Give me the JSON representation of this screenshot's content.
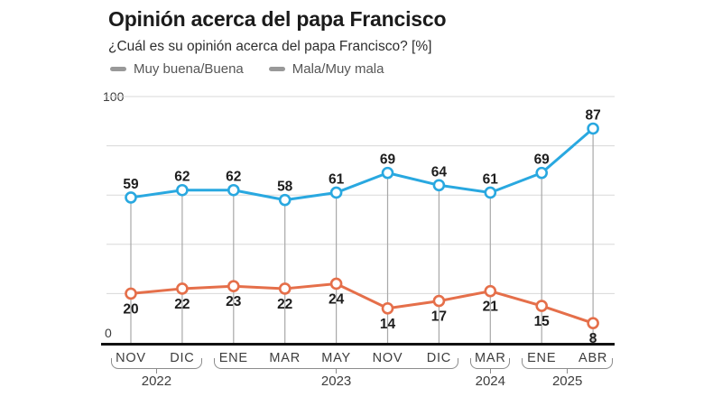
{
  "header": {
    "title": "Opinión acerca del papa Francisco",
    "subtitle": "¿Cuál es su opinión acerca del papa Francisco? [%]"
  },
  "legend": [
    {
      "label": "Muy buena/Buena",
      "color": "#29a8e0"
    },
    {
      "label": "Mala/Muy mala",
      "color": "#e56f4a"
    }
  ],
  "chart_data": {
    "type": "line",
    "title": "Opinión acerca del papa Francisco",
    "subtitle": "¿Cuál es su opinión acerca del papa Francisco? [%]",
    "xlabel": "",
    "ylabel": "",
    "ylim": [
      0,
      100
    ],
    "gridline_step": 20,
    "grid": "horizontal gridlines every 20, vertical droplines at each data point",
    "legend_position": "top-left",
    "y_axis_labels": [
      "100",
      "0"
    ],
    "categories": [
      "NOV",
      "DIC",
      "ENE",
      "MAR",
      "MAY",
      "NOV",
      "DIC",
      "MAR",
      "ENE",
      "ABR"
    ],
    "year_groups": [
      {
        "year": "2022",
        "from": 0,
        "to": 1
      },
      {
        "year": "2023",
        "from": 2,
        "to": 6
      },
      {
        "year": "2024",
        "from": 7,
        "to": 7
      },
      {
        "year": "2025",
        "from": 8,
        "to": 9
      }
    ],
    "series": [
      {
        "name": "Muy buena/Buena",
        "color": "#29a8e0",
        "label_position": "above",
        "values": [
          59,
          62,
          62,
          58,
          61,
          69,
          64,
          61,
          69,
          87
        ]
      },
      {
        "name": "Mala/Muy mala",
        "color": "#e56f4a",
        "label_position": "below",
        "values": [
          20,
          22,
          23,
          22,
          24,
          14,
          17,
          21,
          15,
          8
        ]
      }
    ]
  }
}
